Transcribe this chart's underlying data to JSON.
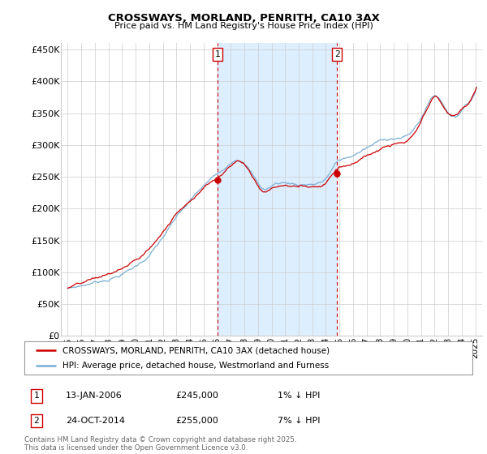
{
  "title": "CROSSWAYS, MORLAND, PENRITH, CA10 3AX",
  "subtitle": "Price paid vs. HM Land Registry's House Price Index (HPI)",
  "ylabel_ticks": [
    "£0",
    "£50K",
    "£100K",
    "£150K",
    "£200K",
    "£250K",
    "£300K",
    "£350K",
    "£400K",
    "£450K"
  ],
  "ytick_values": [
    0,
    50000,
    100000,
    150000,
    200000,
    250000,
    300000,
    350000,
    400000,
    450000
  ],
  "ylim": [
    0,
    460000
  ],
  "xlim_start": 1994.5,
  "xlim_end": 2025.5,
  "x_ticks": [
    1995,
    1996,
    1997,
    1998,
    1999,
    2000,
    2001,
    2002,
    2003,
    2004,
    2005,
    2006,
    2007,
    2008,
    2009,
    2010,
    2011,
    2012,
    2013,
    2014,
    2015,
    2016,
    2017,
    2018,
    2019,
    2020,
    2021,
    2022,
    2023,
    2024,
    2025
  ],
  "hpi_color": "#7bafd4",
  "price_color": "#cc0000",
  "vline_color": "#cc0000",
  "shaded_color": "#ddeeff",
  "purchase1_x": 2006.04,
  "purchase1_y": 245000,
  "purchase1_label": "1",
  "purchase1_date": "13-JAN-2006",
  "purchase1_price": "£245,000",
  "purchase1_hpi": "1% ↓ HPI",
  "purchase2_x": 2014.82,
  "purchase2_y": 255000,
  "purchase2_label": "2",
  "purchase2_date": "24-OCT-2014",
  "purchase2_price": "£255,000",
  "purchase2_hpi": "7% ↓ HPI",
  "legend_line1": "CROSSWAYS, MORLAND, PENRITH, CA10 3AX (detached house)",
  "legend_line2": "HPI: Average price, detached house, Westmorland and Furness",
  "footer": "Contains HM Land Registry data © Crown copyright and database right 2025.\nThis data is licensed under the Open Government Licence v3.0.",
  "background_color": "#ffffff",
  "plot_bg_color": "#ffffff",
  "grid_color": "#cccccc"
}
